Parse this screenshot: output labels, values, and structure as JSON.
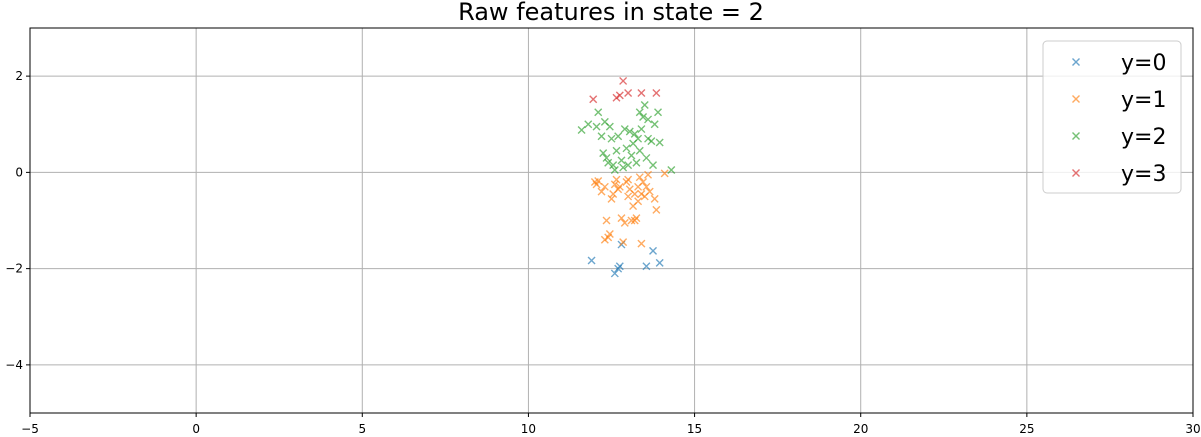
{
  "chart_data": {
    "type": "scatter",
    "title": "Raw features in state = 2",
    "xlabel": "",
    "ylabel": "",
    "xlim": [
      -5,
      30
    ],
    "ylim": [
      -5,
      3
    ],
    "grid": true,
    "legend_position": "top-right",
    "marker": "x",
    "x_ticks": [
      -5,
      0,
      5,
      10,
      15,
      20,
      25,
      30
    ],
    "y_ticks": [
      -4,
      -2,
      0,
      2
    ],
    "x_tick_labels": [
      "−5",
      "0",
      "5",
      "10",
      "15",
      "20",
      "25",
      "30"
    ],
    "y_tick_labels": [
      "−4",
      "−2",
      "0",
      "2"
    ],
    "series": [
      {
        "name": "y=0",
        "color": "#1f77b4",
        "points": [
          [
            11.9,
            -1.83
          ],
          [
            12.6,
            -2.1
          ],
          [
            12.7,
            -2.0
          ],
          [
            12.75,
            -1.95
          ],
          [
            12.8,
            -1.5
          ],
          [
            13.55,
            -1.95
          ],
          [
            13.75,
            -1.63
          ],
          [
            13.95,
            -1.88
          ]
        ]
      },
      {
        "name": "y=1",
        "color": "#ff7f0e",
        "points": [
          [
            12.0,
            -0.2
          ],
          [
            12.05,
            -0.25
          ],
          [
            12.1,
            -0.18
          ],
          [
            12.2,
            -0.4
          ],
          [
            12.3,
            -0.3
          ],
          [
            12.35,
            -1.0
          ],
          [
            12.3,
            -1.4
          ],
          [
            12.4,
            -1.35
          ],
          [
            12.45,
            -1.28
          ],
          [
            12.5,
            -0.55
          ],
          [
            12.55,
            -0.45
          ],
          [
            12.6,
            -0.25
          ],
          [
            12.65,
            -0.15
          ],
          [
            12.7,
            -0.35
          ],
          [
            12.75,
            -0.3
          ],
          [
            12.8,
            -0.95
          ],
          [
            12.85,
            -1.45
          ],
          [
            12.9,
            -1.05
          ],
          [
            12.95,
            -0.2
          ],
          [
            13.0,
            -0.5
          ],
          [
            13.05,
            -0.35
          ],
          [
            13.1,
            -1.0
          ],
          [
            13.15,
            -0.7
          ],
          [
            13.2,
            -0.45
          ],
          [
            13.2,
            -1.0
          ],
          [
            13.25,
            -0.95
          ],
          [
            13.3,
            -0.3
          ],
          [
            13.35,
            -0.1
          ],
          [
            13.4,
            -0.45
          ],
          [
            13.45,
            -0.2
          ],
          [
            13.4,
            -1.48
          ],
          [
            13.5,
            -0.5
          ],
          [
            13.55,
            -0.3
          ],
          [
            13.6,
            -0.05
          ],
          [
            13.65,
            -0.4
          ],
          [
            13.8,
            -0.55
          ],
          [
            13.85,
            -0.78
          ],
          [
            14.1,
            -0.02
          ],
          [
            13.0,
            -0.15
          ],
          [
            13.3,
            -0.6
          ]
        ]
      },
      {
        "name": "y=2",
        "color": "#2ca02c",
        "points": [
          [
            11.6,
            0.88
          ],
          [
            11.8,
            1.0
          ],
          [
            12.05,
            0.95
          ],
          [
            12.1,
            1.25
          ],
          [
            12.2,
            0.75
          ],
          [
            12.25,
            0.4
          ],
          [
            12.3,
            1.05
          ],
          [
            12.35,
            0.3
          ],
          [
            12.4,
            0.2
          ],
          [
            12.5,
            0.7
          ],
          [
            12.55,
            0.15
          ],
          [
            12.6,
            0.05
          ],
          [
            12.65,
            0.45
          ],
          [
            12.7,
            0.75
          ],
          [
            12.8,
            0.25
          ],
          [
            12.9,
            0.9
          ],
          [
            12.95,
            0.5
          ],
          [
            13.0,
            0.15
          ],
          [
            13.05,
            0.85
          ],
          [
            13.1,
            0.35
          ],
          [
            13.15,
            0.6
          ],
          [
            13.2,
            0.8
          ],
          [
            13.25,
            0.2
          ],
          [
            13.3,
            0.7
          ],
          [
            13.35,
            1.25
          ],
          [
            13.4,
            0.9
          ],
          [
            13.45,
            1.15
          ],
          [
            13.5,
            1.4
          ],
          [
            13.55,
            0.3
          ],
          [
            13.6,
            1.1
          ],
          [
            13.7,
            0.65
          ],
          [
            13.75,
            0.15
          ],
          [
            13.8,
            1.0
          ],
          [
            13.9,
            1.25
          ],
          [
            13.95,
            0.62
          ],
          [
            14.3,
            0.05
          ],
          [
            12.85,
            0.1
          ],
          [
            13.35,
            0.45
          ],
          [
            12.45,
            0.95
          ],
          [
            13.6,
            0.7
          ]
        ]
      },
      {
        "name": "y=3",
        "color": "#d62728",
        "points": [
          [
            11.95,
            1.52
          ],
          [
            12.65,
            1.55
          ],
          [
            12.75,
            1.6
          ],
          [
            12.85,
            1.9
          ],
          [
            13.0,
            1.65
          ],
          [
            13.4,
            1.65
          ],
          [
            13.85,
            1.65
          ]
        ]
      }
    ]
  }
}
